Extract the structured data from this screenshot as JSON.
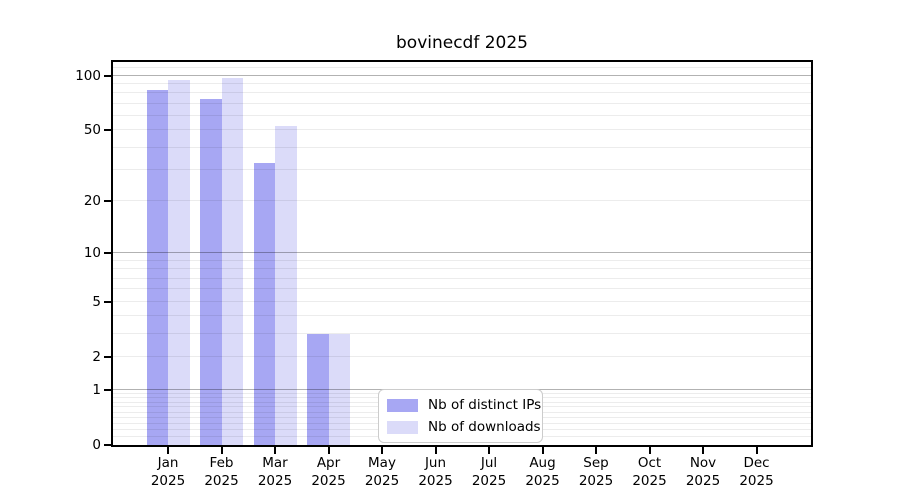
{
  "figure": {
    "background": "#ffffff"
  },
  "chart_data": {
    "type": "bar",
    "title": "bovinecdf 2025",
    "xlabel": "",
    "ylabel": "",
    "scale": "log1p",
    "months": [
      "Jan",
      "Feb",
      "Mar",
      "Apr",
      "May",
      "Jun",
      "Jul",
      "Aug",
      "Sep",
      "Oct",
      "Nov",
      "Dec"
    ],
    "year": "2025",
    "y_ticks": [
      0,
      1,
      2,
      5,
      10,
      20,
      50,
      100
    ],
    "ylim": [
      0,
      119
    ],
    "grid": {
      "major_at": [
        1,
        10,
        100
      ],
      "minor_on": true,
      "legend_framed": true
    },
    "series": [
      {
        "name": "Nb of distinct IPs",
        "color": "#a7a7f3",
        "values": [
          83,
          74,
          33,
          3,
          0,
          0,
          0,
          0,
          0,
          0,
          0,
          0
        ]
      },
      {
        "name": "Nb of downloads",
        "color": "#dbdbf9",
        "values": [
          94,
          97,
          53,
          3,
          0,
          0,
          0,
          0,
          0,
          0,
          0,
          0
        ]
      }
    ],
    "legend_position": "inside-bottom-center"
  }
}
